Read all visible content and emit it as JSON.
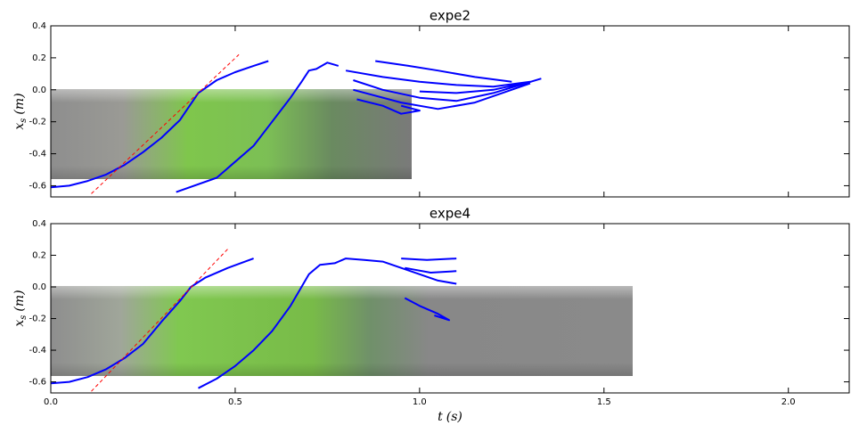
{
  "chart_data": [
    {
      "type": "line",
      "title": "expe2",
      "ylabel": {
        "symbol": "x",
        "subscript": "s",
        "unit": "(m)"
      },
      "xlim": [
        0,
        2.165
      ],
      "ylim": [
        -0.67,
        0.4
      ],
      "xticks": [
        {
          "value": 0,
          "label": "0.0"
        },
        0.5,
        {
          "value": 1,
          "label": "1.0"
        },
        1.5,
        {
          "value": 2,
          "label": "2.0"
        }
      ],
      "show_xtick_labels": false,
      "yticks": [
        -0.6,
        -0.4,
        -0.2,
        {
          "value": 0,
          "label": "0.0"
        },
        0.2,
        0.4
      ],
      "series": [
        {
          "color": "#0000ff",
          "linestyle": "solid",
          "x": [
            0.0,
            0.05,
            0.1,
            0.15,
            0.2,
            0.25,
            0.3,
            0.35,
            0.4,
            0.45,
            0.5,
            0.55,
            0.59
          ],
          "values": [
            -0.61,
            -0.6,
            -0.57,
            -0.53,
            -0.47,
            -0.39,
            -0.3,
            -0.19,
            -0.02,
            0.06,
            0.11,
            0.15,
            0.18
          ]
        },
        {
          "color": "#0000ff",
          "linestyle": "solid",
          "x": [
            0.34,
            0.45,
            0.55,
            0.6,
            0.65,
            0.68,
            0.7,
            0.72,
            0.75,
            0.78
          ],
          "values": [
            -0.64,
            -0.55,
            -0.35,
            -0.2,
            -0.05,
            0.05,
            0.12,
            0.13,
            0.17,
            0.15
          ]
        },
        {
          "color": "#0000ff",
          "linestyle": "solid",
          "x": [
            0.82,
            0.9,
            1.0,
            1.1,
            1.2,
            1.33,
            null,
            0.82,
            0.95,
            1.05,
            1.15,
            1.3,
            null,
            0.83,
            0.9,
            0.95,
            1.0,
            0.95,
            null,
            0.88,
            0.97,
            1.05,
            1.15,
            1.25,
            null,
            0.8,
            0.9,
            1.0,
            1.1,
            1.2,
            1.3,
            1.2,
            1.1,
            1.0
          ],
          "values": [
            0.06,
            0.0,
            -0.05,
            -0.07,
            -0.02,
            0.07,
            null,
            0.0,
            -0.08,
            -0.12,
            -0.08,
            0.04,
            null,
            -0.06,
            -0.1,
            -0.15,
            -0.13,
            -0.1,
            null,
            0.18,
            0.15,
            0.12,
            0.08,
            0.05,
            null,
            0.12,
            0.08,
            0.05,
            0.03,
            0.02,
            0.05,
            0.0,
            -0.02,
            -0.01
          ]
        },
        {
          "color": "#ff0000",
          "linestyle": "dashed",
          "x": [
            0.11,
            0.51
          ],
          "values": [
            -0.65,
            0.22
          ]
        }
      ]
    },
    {
      "type": "line",
      "title": "expe4",
      "xlabel": {
        "symbol": "t",
        "unit": "(s)"
      },
      "ylabel": {
        "symbol": "x",
        "subscript": "s",
        "unit": "(m)"
      },
      "xlim": [
        0,
        2.165
      ],
      "ylim": [
        -0.67,
        0.4
      ],
      "xticks": [
        {
          "value": 0,
          "label": "0.0"
        },
        0.5,
        {
          "value": 1,
          "label": "1.0"
        },
        1.5,
        {
          "value": 2,
          "label": "2.0"
        }
      ],
      "show_xtick_labels": true,
      "yticks": [
        -0.6,
        -0.4,
        -0.2,
        {
          "value": 0,
          "label": "0.0"
        },
        0.2,
        0.4
      ],
      "series": [
        {
          "color": "#0000ff",
          "linestyle": "solid",
          "x": [
            0.0,
            0.05,
            0.1,
            0.15,
            0.2,
            0.25,
            0.3,
            0.35,
            0.38,
            0.42,
            0.48,
            0.55
          ],
          "values": [
            -0.61,
            -0.6,
            -0.57,
            -0.52,
            -0.45,
            -0.36,
            -0.22,
            -0.09,
            0.0,
            0.06,
            0.12,
            0.18
          ]
        },
        {
          "color": "#0000ff",
          "linestyle": "solid",
          "x": [
            0.4,
            0.45,
            0.5,
            0.55,
            0.6,
            0.65,
            0.68,
            0.7,
            0.73,
            0.77,
            0.8,
            0.85,
            0.9,
            0.95,
            1.0,
            1.05,
            1.1
          ],
          "values": [
            -0.64,
            -0.58,
            -0.5,
            -0.4,
            -0.28,
            -0.12,
            0.0,
            0.08,
            0.14,
            0.15,
            0.18,
            0.17,
            0.16,
            0.12,
            0.08,
            0.04,
            0.02
          ]
        },
        {
          "color": "#0000ff",
          "linestyle": "solid",
          "x": [
            0.95,
            1.02,
            1.1,
            null,
            0.96,
            1.03,
            1.1,
            null,
            0.96,
            1.0,
            1.05,
            1.08,
            1.04
          ],
          "values": [
            0.18,
            0.17,
            0.18,
            null,
            0.12,
            0.09,
            0.1,
            null,
            -0.07,
            -0.12,
            -0.17,
            -0.21,
            -0.18
          ]
        },
        {
          "color": "#ff0000",
          "linestyle": "dashed",
          "x": [
            0.11,
            0.48
          ],
          "values": [
            -0.66,
            0.24
          ]
        }
      ]
    }
  ]
}
